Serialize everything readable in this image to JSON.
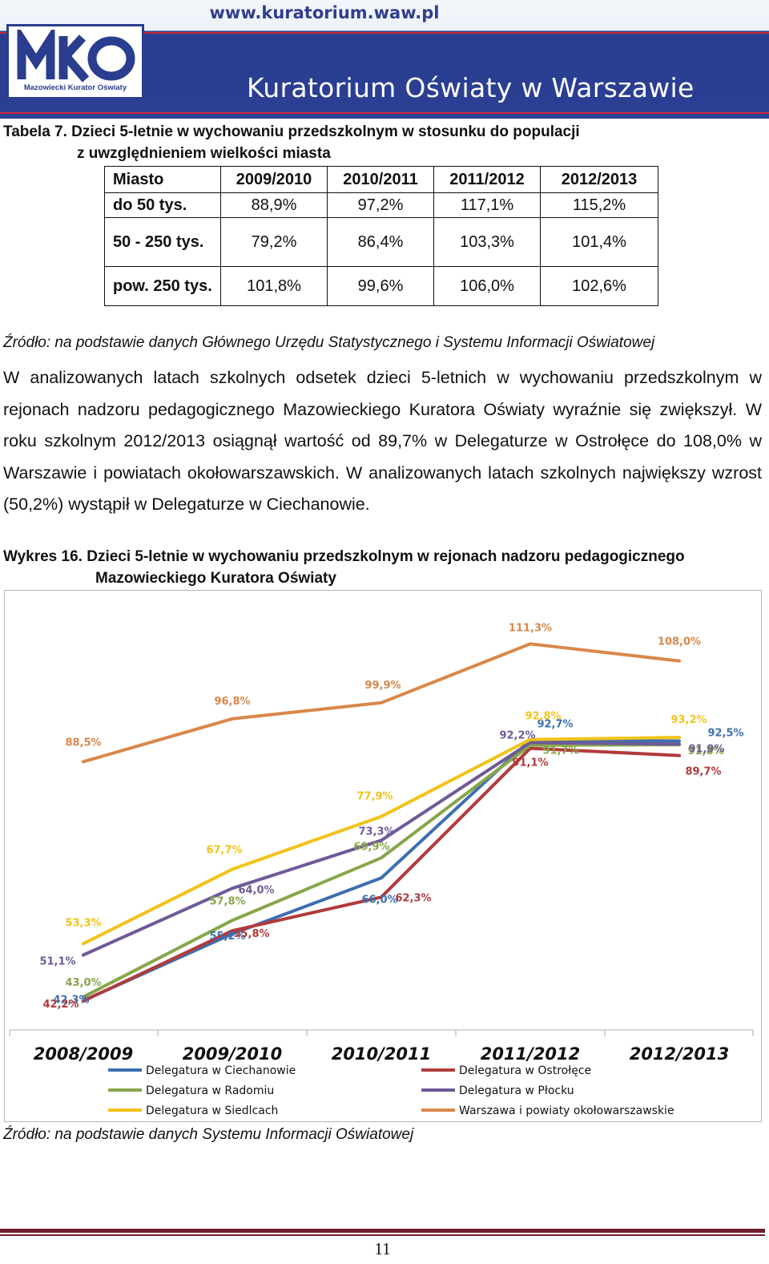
{
  "header": {
    "url": "www.kuratorium.waw.pl",
    "logo_subtitle": "Mazowiecki Kurator Oświaty",
    "brand": "Kuratorium Oświaty w Warszawie"
  },
  "table7": {
    "caption_line1": "Tabela 7. Dzieci 5-letnie w wychowaniu przedszkolnym w stosunku do populacji",
    "caption_line2": "z uwzględnieniem wielkości miasta",
    "headers": [
      "Miasto",
      "2009/2010",
      "2010/2011",
      "2011/2012",
      "2012/2013"
    ],
    "rows": [
      [
        "do 50 tys.",
        "88,9%",
        "97,2%",
        "117,1%",
        "115,2%"
      ],
      [
        "50 - 250 tys.",
        "79,2%",
        "86,4%",
        "103,3%",
        "101,4%"
      ],
      [
        "pow. 250 tys.",
        "101,8%",
        "99,6%",
        "106,0%",
        "102,6%"
      ]
    ],
    "source": "Źródło: na podstawie danych Głównego Urzędu Statystycznego i Systemu Informacji Oświatowej"
  },
  "paragraph": "W analizowanych latach szkolnych odsetek dzieci 5-letnich w wychowaniu przedszkolnym w rejonach nadzoru pedagogicznego Mazowieckiego Kuratora Oświaty wyraźnie się zwiększył. W roku szkolnym 2012/2013 osiągnął wartość od 89,7% w Delegaturze w Ostrołęce do 108,0% w Warszawie i powiatach okołowarszawskich. W analizowanych latach szkolnych największy wzrost (50,2%) wystąpił w Delegaturze w Ciechanowie.",
  "chart16": {
    "caption_line1": "Wykres 16. Dzieci 5-letnie w wychowaniu przedszkolnym w rejonach nadzoru pedagogicznego",
    "caption_line2": "Mazowieckiego Kuratora Oświaty",
    "source": "Źródło: na podstawie danych Systemu Informacji Oświatowej"
  },
  "chart_data": {
    "type": "line",
    "categories": [
      "2008/2009",
      "2009/2010",
      "2010/2011",
      "2011/2012",
      "2012/2013"
    ],
    "ylim": [
      38,
      116
    ],
    "grid": false,
    "legend_position": "bottom",
    "series": [
      {
        "name": "Delegatura w Ciechanowie",
        "color": "#3d6fb0",
        "values": [
          42.3,
          55.2,
          66.0,
          92.7,
          92.5
        ],
        "labels": [
          "42,3%",
          "55,2%",
          "66,0%",
          "92,7%",
          "92,5%"
        ]
      },
      {
        "name": "Delegatura w Ostrołęce",
        "color": "#b13b3b",
        "values": [
          42.2,
          55.8,
          62.3,
          91.1,
          89.7
        ],
        "labels": [
          "42,2%",
          "55,8%",
          "62,3%",
          "91,1%",
          "89,7%"
        ]
      },
      {
        "name": "Delegatura w Radomiu",
        "color": "#86a64a",
        "values": [
          43.0,
          57.8,
          69.9,
          91.7,
          91.8
        ],
        "labels": [
          "43,0%",
          "57,8%",
          "69,9%",
          "91,7%",
          "91,8%"
        ]
      },
      {
        "name": "Delegatura w Płocku",
        "color": "#6f5a98",
        "values": [
          51.1,
          64.0,
          73.3,
          92.2,
          91.9
        ],
        "labels": [
          "51,1%",
          "64,0%",
          "73,3%",
          "92,2%",
          "91,9%"
        ]
      },
      {
        "name": "Delegatura w Siedlcach",
        "color": "#f2c319",
        "values": [
          53.3,
          67.7,
          77.9,
          92.8,
          93.2
        ],
        "labels": [
          "53,3%",
          "67,7%",
          "77,9%",
          "92,8%",
          "93,2%"
        ]
      },
      {
        "name": "Warszawa i powiaty okołowarszawskie",
        "color": "#d9874a",
        "values": [
          88.5,
          96.8,
          99.9,
          111.3,
          108.0
        ],
        "labels": [
          "88,5%",
          "96,8%",
          "99,9%",
          "111,3%",
          "108,0%"
        ]
      }
    ]
  },
  "page_number": "11"
}
